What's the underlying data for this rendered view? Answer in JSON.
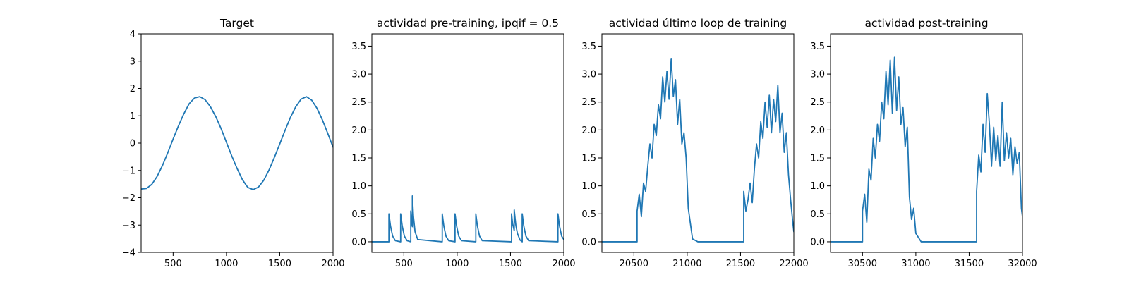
{
  "colors": {
    "series": "#1f77b4",
    "axes": "#000000",
    "background": "#ffffff"
  },
  "chart_data": [
    {
      "type": "line",
      "title": "Target",
      "xlabel": "",
      "ylabel": "",
      "xlim": [
        200,
        2000
      ],
      "ylim": [
        -4,
        4
      ],
      "xticks": [
        500,
        1000,
        1500,
        2000
      ],
      "xtick_labels": [
        "500",
        "1000",
        "1500",
        "2000"
      ],
      "yticks": [
        -4,
        -3,
        -2,
        -1,
        0,
        1,
        2,
        3,
        4
      ],
      "ytick_labels": [
        "−4",
        "−3",
        "−2",
        "−1",
        "0",
        "1",
        "2",
        "3",
        "4"
      ],
      "grid": false,
      "series": [
        {
          "x": [
            200,
            250,
            300,
            350,
            400,
            450,
            500,
            550,
            600,
            650,
            700,
            750,
            800,
            850,
            900,
            950,
            1000,
            1050,
            1100,
            1150,
            1200,
            1250,
            1300,
            1350,
            1400,
            1450,
            1500,
            1550,
            1600,
            1650,
            1700,
            1750,
            1800,
            1850,
            1900,
            1950,
            2000
          ],
          "y": [
            -1.68,
            -1.66,
            -1.51,
            -1.22,
            -0.82,
            -0.35,
            0.15,
            0.63,
            1.07,
            1.44,
            1.65,
            1.7,
            1.59,
            1.33,
            0.97,
            0.53,
            0.03,
            -0.47,
            -0.93,
            -1.34,
            -1.62,
            -1.7,
            -1.61,
            -1.36,
            -0.98,
            -0.52,
            -0.03,
            0.47,
            0.94,
            1.33,
            1.61,
            1.7,
            1.57,
            1.27,
            0.85,
            0.36,
            -0.15
          ]
        }
      ]
    },
    {
      "type": "line",
      "title": "actividad pre-training, ipqif = 0.5",
      "xlabel": "",
      "ylabel": "",
      "xlim": [
        200,
        2000
      ],
      "ylim": [
        -0.19,
        3.72
      ],
      "xticks": [
        500,
        1000,
        1500,
        2000
      ],
      "xtick_labels": [
        "500",
        "1000",
        "1500",
        "2000"
      ],
      "yticks": [
        0,
        0.5,
        1,
        1.5,
        2,
        2.5,
        3,
        3.5
      ],
      "ytick_labels": [
        "0.0",
        "0.5",
        "1.0",
        "1.5",
        "2.0",
        "2.5",
        "3.0",
        "3.5"
      ],
      "grid": false,
      "series": [
        {
          "x": [
            200,
            360,
            360,
            375,
            395,
            420,
            470,
            470,
            485,
            505,
            530,
            565,
            565,
            572,
            580,
            580,
            590,
            605,
            630,
            860,
            860,
            875,
            895,
            920,
            980,
            980,
            995,
            1015,
            1040,
            1175,
            1175,
            1190,
            1210,
            1235,
            1510,
            1510,
            1520,
            1535,
            1535,
            1550,
            1565,
            1590,
            1610,
            1610,
            1625,
            1645,
            1670,
            1945,
            1945,
            1960,
            1980,
            2000
          ],
          "y": [
            0,
            0,
            0.5,
            0.28,
            0.1,
            0.02,
            0,
            0.5,
            0.28,
            0.1,
            0.02,
            0,
            0.55,
            0.35,
            0.27,
            0.82,
            0.45,
            0.18,
            0.04,
            0,
            0.5,
            0.28,
            0.1,
            0.02,
            0,
            0.5,
            0.28,
            0.1,
            0.02,
            0,
            0.5,
            0.28,
            0.1,
            0.02,
            0,
            0.5,
            0.32,
            0.2,
            0.57,
            0.3,
            0.15,
            0.03,
            0,
            0.5,
            0.28,
            0.1,
            0.02,
            0,
            0.5,
            0.28,
            0.1,
            0.04
          ]
        }
      ]
    },
    {
      "type": "line",
      "title": "actividad último loop de training",
      "xlabel": "",
      "ylabel": "",
      "xlim": [
        20200,
        22000
      ],
      "ylim": [
        -0.19,
        3.72
      ],
      "xticks": [
        20500,
        21000,
        21500,
        22000
      ],
      "xtick_labels": [
        "20500",
        "21000",
        "21500",
        "22000"
      ],
      "yticks": [
        0,
        0.5,
        1,
        1.5,
        2,
        2.5,
        3,
        3.5
      ],
      "ytick_labels": [
        "0.0",
        "0.5",
        "1.0",
        "1.5",
        "2.0",
        "2.5",
        "3.0",
        "3.5"
      ],
      "grid": false,
      "series": [
        {
          "x": [
            20200,
            20530,
            20530,
            20550,
            20570,
            20590,
            20610,
            20630,
            20650,
            20670,
            20690,
            20710,
            20730,
            20750,
            20770,
            20790,
            20810,
            20830,
            20850,
            20870,
            20890,
            20910,
            20930,
            20950,
            20970,
            20990,
            21010,
            21050,
            21100,
            21500,
            21530,
            21530,
            21550,
            21570,
            21590,
            21610,
            21630,
            21650,
            21670,
            21690,
            21710,
            21730,
            21750,
            21770,
            21790,
            21810,
            21830,
            21850,
            21870,
            21890,
            21910,
            21930,
            21950,
            21970,
            21990,
            22000
          ],
          "y": [
            0,
            0,
            0.55,
            0.85,
            0.45,
            1.05,
            0.9,
            1.35,
            1.75,
            1.5,
            2.1,
            1.9,
            2.45,
            2.2,
            2.95,
            2.5,
            3.05,
            2.55,
            3.28,
            2.6,
            2.9,
            2.1,
            2.55,
            1.75,
            1.95,
            1.5,
            0.6,
            0.05,
            0,
            0,
            0,
            0.9,
            0.55,
            0.75,
            1.05,
            0.7,
            1.3,
            1.75,
            1.5,
            2.15,
            1.85,
            2.5,
            2.05,
            2.62,
            1.95,
            2.55,
            2.15,
            2.8,
            1.95,
            2.3,
            1.6,
            1.95,
            1.2,
            0.75,
            0.35,
            0.18
          ]
        }
      ]
    },
    {
      "type": "line",
      "title": "actividad post-training",
      "xlabel": "",
      "ylabel": "",
      "xlim": [
        30200,
        32000
      ],
      "ylim": [
        -0.19,
        3.72
      ],
      "xticks": [
        30500,
        31000,
        31500,
        32000
      ],
      "xtick_labels": [
        "30500",
        "31000",
        "31500",
        "32000"
      ],
      "yticks": [
        0,
        0.5,
        1,
        1.5,
        2,
        2.5,
        3,
        3.5
      ],
      "ytick_labels": [
        "0.0",
        "0.5",
        "1.0",
        "1.5",
        "2.0",
        "2.5",
        "3.0",
        "3.5"
      ],
      "grid": false,
      "series": [
        {
          "x": [
            30200,
            30500,
            30500,
            30520,
            30540,
            30560,
            30580,
            30600,
            30620,
            30640,
            30660,
            30680,
            30700,
            30720,
            30740,
            30760,
            30780,
            30800,
            30820,
            30840,
            30860,
            30880,
            30900,
            30920,
            30940,
            30960,
            30980,
            31000,
            31050,
            31550,
            31570,
            31570,
            31590,
            31610,
            31630,
            31650,
            31670,
            31690,
            31710,
            31730,
            31750,
            31770,
            31790,
            31810,
            31830,
            31850,
            31870,
            31890,
            31910,
            31930,
            31950,
            31970,
            31990,
            32000
          ],
          "y": [
            0,
            0,
            0.55,
            0.85,
            0.35,
            1.3,
            1.1,
            1.85,
            1.5,
            2.1,
            1.8,
            2.5,
            2.2,
            3.05,
            2.45,
            3.25,
            2.3,
            3.3,
            2.35,
            2.95,
            2.1,
            2.4,
            1.7,
            2.05,
            0.8,
            0.4,
            0.6,
            0.15,
            0,
            0,
            0,
            0.9,
            1.55,
            1.25,
            2.1,
            1.6,
            2.65,
            2.1,
            1.35,
            2.05,
            1.45,
            1.9,
            1.35,
            2.5,
            1.45,
            1.95,
            1.5,
            1.85,
            1.2,
            1.7,
            1.4,
            1.6,
            0.6,
            0.45
          ]
        }
      ]
    }
  ]
}
